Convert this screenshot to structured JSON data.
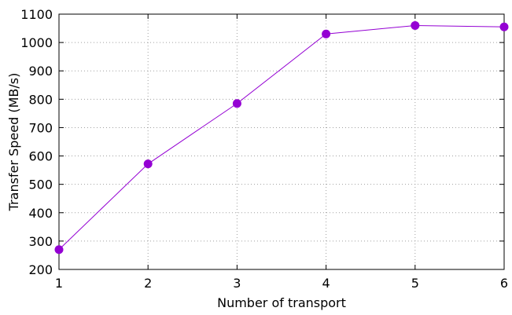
{
  "chart_data": {
    "type": "line",
    "xlabel": "Number of transport",
    "ylabel": "Transfer Speed (MB/s)",
    "x": [
      1,
      2,
      3,
      4,
      5,
      6
    ],
    "series": [
      {
        "values": [
          270,
          572,
          785,
          1030,
          1060,
          1055
        ],
        "color": "#9400d3",
        "marker": "circle"
      }
    ],
    "xlim": [
      1,
      6
    ],
    "ylim": [
      200,
      1100
    ],
    "xticks": [
      "1",
      "2",
      "3",
      "4",
      "5",
      "6"
    ],
    "yticks": [
      "200",
      "300",
      "400",
      "500",
      "600",
      "700",
      "800",
      "900",
      "1000",
      "1100"
    ],
    "grid": true
  }
}
